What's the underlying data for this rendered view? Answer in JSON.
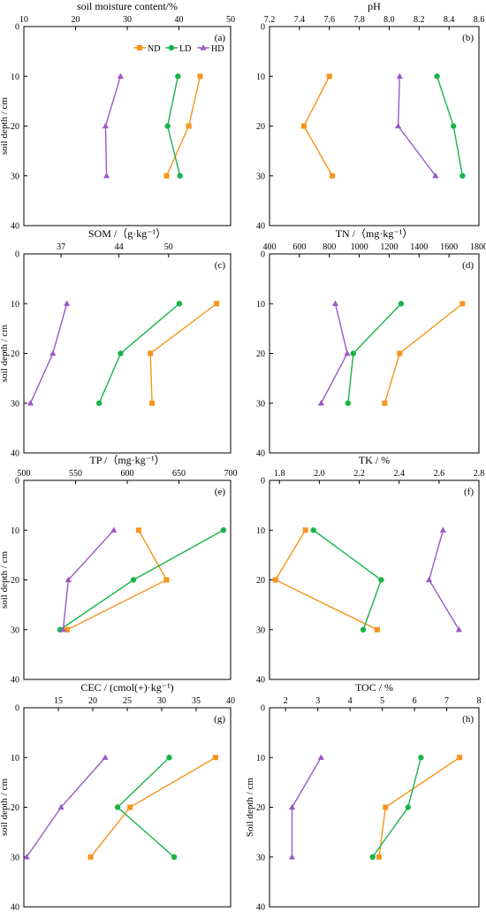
{
  "figure": {
    "legend": [
      {
        "name": "ND",
        "color": "#f7941d",
        "marker": "square"
      },
      {
        "name": "LD",
        "color": "#19b347",
        "marker": "circle"
      },
      {
        "name": "HD",
        "color": "#9b59c6",
        "marker": "triangle"
      }
    ]
  },
  "chart_data": [
    {
      "type": "line",
      "panel": "(a)",
      "title": "soil moisture content/%",
      "ylabel": "soil depth / cm",
      "xlim": [
        10,
        50
      ],
      "xticks": [
        "10",
        "20",
        "30",
        "40",
        "50"
      ],
      "ylim": [
        0,
        40
      ],
      "yticks": [
        "0",
        "10",
        "20",
        "30",
        "40"
      ],
      "legend": "top-right",
      "y": [
        10,
        20,
        30
      ],
      "series": [
        {
          "name": "ND",
          "values": [
            44.1,
            41.9,
            37.6
          ]
        },
        {
          "name": "LD",
          "values": [
            39.8,
            37.8,
            40.2
          ]
        },
        {
          "name": "HD",
          "values": [
            28.7,
            25.8,
            26.0
          ]
        }
      ]
    },
    {
      "type": "line",
      "panel": "(b)",
      "title": "pH",
      "ylabel": "",
      "xlim": [
        7.2,
        8.6
      ],
      "xticks": [
        "7.2",
        "7.4",
        "7.6",
        "7.8",
        "8.0",
        "8.2",
        "8.4",
        "8.6"
      ],
      "ylim": [
        0,
        40
      ],
      "yticks": [
        "0",
        "10",
        "20",
        "30",
        "40"
      ],
      "y": [
        10,
        20,
        30
      ],
      "series": [
        {
          "name": "ND",
          "values": [
            7.6,
            7.43,
            7.62
          ]
        },
        {
          "name": "LD",
          "values": [
            8.32,
            8.43,
            8.49
          ]
        },
        {
          "name": "HD",
          "values": [
            8.07,
            8.06,
            8.31
          ]
        }
      ]
    },
    {
      "type": "line",
      "panel": "(c)",
      "title": "SOM /（g·kg⁻¹）",
      "ylabel": "soil depth / cm",
      "xlim": [
        32.5,
        57.5
      ],
      "xticks": [
        "37",
        "44",
        "50"
      ],
      "xtick_values": [
        37,
        44,
        50
      ],
      "ylim": [
        0,
        40
      ],
      "yticks": [
        "0",
        "10",
        "20",
        "30",
        "40"
      ],
      "y": [
        10,
        20,
        30
      ],
      "series": [
        {
          "name": "ND",
          "values": [
            55.8,
            47.8,
            48.0
          ]
        },
        {
          "name": "LD",
          "values": [
            51.3,
            44.2,
            41.6
          ]
        },
        {
          "name": "HD",
          "values": [
            37.7,
            36.0,
            33.3
          ]
        }
      ]
    },
    {
      "type": "line",
      "panel": "(d)",
      "title": "TN /（mg·kg⁻¹）",
      "ylabel": "",
      "xlim": [
        400,
        1800
      ],
      "xticks": [
        "400",
        "600",
        "800",
        "1000",
        "1200",
        "1400",
        "1600",
        "1800"
      ],
      "ylim": [
        0,
        40
      ],
      "yticks": [
        "0",
        "10",
        "20",
        "30",
        "40"
      ],
      "y": [
        10,
        20,
        30
      ],
      "series": [
        {
          "name": "ND",
          "values": [
            1690,
            1270,
            1170
          ]
        },
        {
          "name": "LD",
          "values": [
            1280,
            960,
            925
          ]
        },
        {
          "name": "HD",
          "values": [
            840,
            920,
            745
          ]
        }
      ]
    },
    {
      "type": "line",
      "panel": "(e)",
      "title": "TP /（mg·kg⁻¹）",
      "ylabel": "soil depth / cm",
      "xlim": [
        500,
        700
      ],
      "xticks": [
        "500",
        "550",
        "600",
        "650",
        "700"
      ],
      "ylim": [
        0,
        40
      ],
      "yticks": [
        "0",
        "10",
        "20",
        "30",
        "40"
      ],
      "y": [
        10,
        20,
        30
      ],
      "series": [
        {
          "name": "ND",
          "values": [
            611,
            638,
            542
          ]
        },
        {
          "name": "LD",
          "values": [
            693,
            606,
            535
          ]
        },
        {
          "name": "HD",
          "values": [
            587,
            543,
            538
          ]
        }
      ]
    },
    {
      "type": "line",
      "panel": "(f)",
      "title": "TK / %",
      "ylabel": "",
      "xlim": [
        1.75,
        2.8
      ],
      "xticks": [
        "1.8",
        "2.0",
        "2.2",
        "2.4",
        "2.6",
        "2.8"
      ],
      "ylim": [
        0,
        40
      ],
      "yticks": [
        "0",
        "10",
        "20",
        "30",
        "40"
      ],
      "y": [
        10,
        20,
        30
      ],
      "series": [
        {
          "name": "ND",
          "values": [
            1.93,
            1.78,
            2.29
          ]
        },
        {
          "name": "LD",
          "values": [
            1.97,
            2.31,
            2.22
          ]
        },
        {
          "name": "HD",
          "values": [
            2.62,
            2.55,
            2.7
          ]
        }
      ]
    },
    {
      "type": "line",
      "panel": "(g)",
      "title": "CEC / (cmol(+)·kg⁻¹)",
      "ylabel": "soil depth / cm",
      "xlim": [
        10,
        40
      ],
      "xticks": [
        "15",
        "20",
        "25",
        "30",
        "35",
        "40"
      ],
      "xtick_values": [
        15,
        20,
        25,
        30,
        35,
        40
      ],
      "ylim": [
        0,
        40
      ],
      "yticks": [
        "0",
        "10",
        "20",
        "30",
        "40"
      ],
      "y": [
        10,
        20,
        30
      ],
      "series": [
        {
          "name": "ND",
          "values": [
            37.8,
            25.4,
            19.7
          ]
        },
        {
          "name": "LD",
          "values": [
            31.1,
            23.6,
            31.8
          ]
        },
        {
          "name": "HD",
          "values": [
            21.8,
            15.4,
            10.4
          ]
        }
      ]
    },
    {
      "type": "line",
      "panel": "(h)",
      "title": "TOC / %",
      "ylabel": "Soil depth / cm",
      "xlim": [
        1.5,
        8
      ],
      "xticks": [
        "2",
        "3",
        "4",
        "5",
        "6",
        "7",
        "8"
      ],
      "xtick_values": [
        2,
        3,
        4,
        5,
        6,
        7,
        8
      ],
      "ylim": [
        0,
        40
      ],
      "yticks": [
        "0",
        "10",
        "20",
        "30",
        "40"
      ],
      "y": [
        10,
        20,
        30
      ],
      "series": [
        {
          "name": "ND",
          "values": [
            7.4,
            5.1,
            4.9
          ]
        },
        {
          "name": "LD",
          "values": [
            6.2,
            5.8,
            4.7
          ]
        },
        {
          "name": "HD",
          "values": [
            3.1,
            2.2,
            2.2
          ]
        }
      ]
    }
  ]
}
